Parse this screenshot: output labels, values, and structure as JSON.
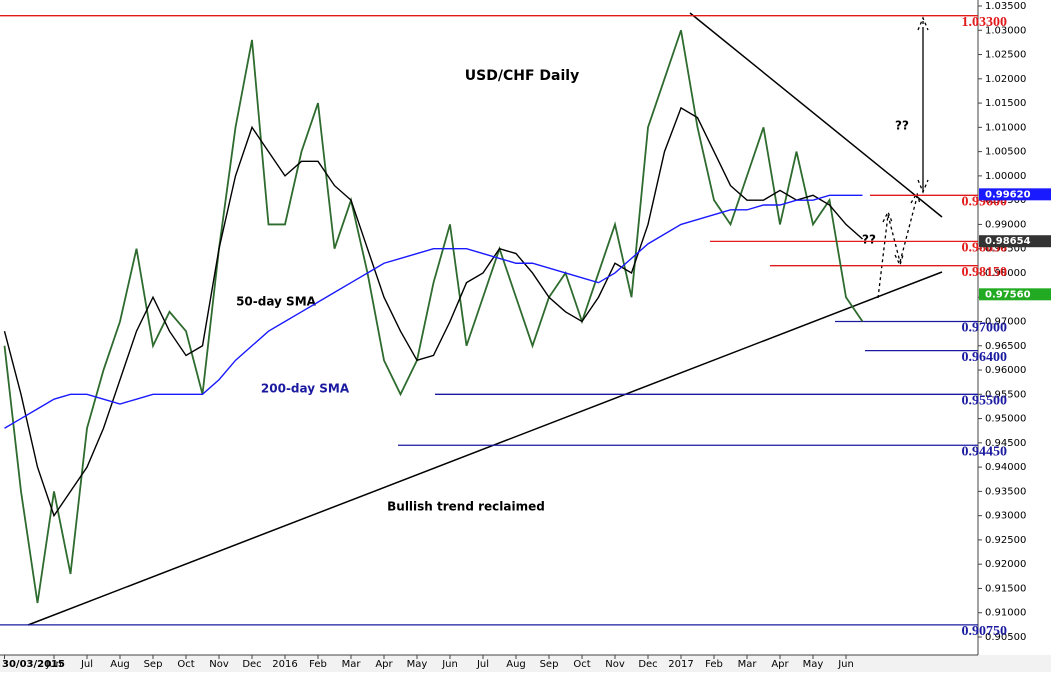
{
  "chart_data": {
    "type": "line",
    "title": "USD/CHF Daily",
    "categories": [
      "30/03/2015",
      null,
      null,
      "Jun",
      null,
      "Jul",
      null,
      "Aug",
      null,
      "Sep",
      null,
      "Oct",
      null,
      "Nov",
      null,
      "Dec",
      null,
      "2016",
      null,
      "Feb",
      null,
      "Mar",
      null,
      "Apr",
      null,
      "May",
      null,
      "Jun",
      null,
      "Jul",
      null,
      "Aug",
      null,
      "Sep",
      null,
      "Oct",
      null,
      "Nov",
      null,
      "Dec",
      null,
      "2017",
      null,
      "Feb",
      null,
      "Mar",
      null,
      "Apr",
      null,
      "May",
      null,
      "Jun",
      null
    ],
    "series": [
      {
        "name": "USD/CHF",
        "color": "#2e6b2e",
        "values": [
          0.965,
          0.935,
          0.912,
          0.935,
          0.918,
          0.948,
          0.96,
          0.97,
          0.985,
          0.965,
          0.972,
          0.968,
          0.955,
          0.985,
          1.01,
          1.028,
          0.99,
          0.99,
          1.005,
          1.015,
          0.985,
          0.995,
          0.98,
          0.962,
          0.955,
          0.962,
          0.978,
          0.99,
          0.965,
          0.975,
          0.985,
          0.975,
          0.965,
          0.975,
          0.98,
          0.97,
          0.98,
          0.99,
          0.975,
          1.01,
          1.02,
          1.03,
          1.01,
          0.995,
          0.99,
          1.0,
          1.01,
          0.99,
          1.005,
          0.99,
          0.995,
          0.975,
          0.97
        ]
      },
      {
        "name": "50-day SMA",
        "color": "#000000",
        "values": [
          0.968,
          0.955,
          0.94,
          0.93,
          0.935,
          0.94,
          0.948,
          0.958,
          0.968,
          0.975,
          0.968,
          0.963,
          0.965,
          0.985,
          1.0,
          1.01,
          1.005,
          1.0,
          1.003,
          1.003,
          0.998,
          0.995,
          0.985,
          0.975,
          0.968,
          0.962,
          0.963,
          0.97,
          0.978,
          0.98,
          0.985,
          0.984,
          0.98,
          0.975,
          0.972,
          0.97,
          0.975,
          0.982,
          0.98,
          0.99,
          1.005,
          1.014,
          1.012,
          1.005,
          0.998,
          0.995,
          0.995,
          0.997,
          0.995,
          0.996,
          0.994,
          0.99,
          0.987
        ]
      },
      {
        "name": "200-day SMA",
        "color": "#1a1aff",
        "values": [
          0.948,
          0.95,
          0.952,
          0.954,
          0.955,
          0.955,
          0.954,
          0.953,
          0.954,
          0.955,
          0.955,
          0.955,
          0.955,
          0.958,
          0.962,
          0.965,
          0.968,
          0.97,
          0.972,
          0.974,
          0.976,
          0.978,
          0.98,
          0.982,
          0.983,
          0.984,
          0.985,
          0.985,
          0.985,
          0.984,
          0.983,
          0.982,
          0.982,
          0.981,
          0.98,
          0.979,
          0.978,
          0.98,
          0.983,
          0.986,
          0.988,
          0.99,
          0.991,
          0.992,
          0.993,
          0.993,
          0.994,
          0.994,
          0.995,
          0.995,
          0.996,
          0.996,
          0.996
        ]
      }
    ],
    "ylim": [
      0.905,
      1.035
    ],
    "yticks": [
      {
        "value": 0.905,
        "label": "0.90500"
      },
      {
        "value": 0.91,
        "label": "0.91000"
      },
      {
        "value": 0.915,
        "label": "0.91500"
      },
      {
        "value": 0.92,
        "label": "0.92000"
      },
      {
        "value": 0.925,
        "label": "0.92500"
      },
      {
        "value": 0.93,
        "label": "0.93000"
      },
      {
        "value": 0.935,
        "label": "0.93500"
      },
      {
        "value": 0.94,
        "label": "0.94000"
      },
      {
        "value": 0.945,
        "label": "0.94500"
      },
      {
        "value": 0.95,
        "label": "0.95000"
      },
      {
        "value": 0.955,
        "label": "0.95500"
      },
      {
        "value": 0.96,
        "label": "0.96000"
      },
      {
        "value": 0.965,
        "label": "0.96500"
      },
      {
        "value": 0.97,
        "label": "0.97000"
      },
      {
        "value": 0.975,
        "label": "0.97500"
      },
      {
        "value": 0.98,
        "label": "0.98000"
      },
      {
        "value": 0.985,
        "label": "0.98500"
      },
      {
        "value": 0.99,
        "label": "0.99000"
      },
      {
        "value": 0.995,
        "label": "0.99500"
      },
      {
        "value": 1.0,
        "label": "1.00000"
      },
      {
        "value": 1.005,
        "label": "1.00500"
      },
      {
        "value": 1.01,
        "label": "1.01000"
      },
      {
        "value": 1.015,
        "label": "1.01500"
      },
      {
        "value": 1.02,
        "label": "1.02000"
      },
      {
        "value": 1.025,
        "label": "1.02500"
      },
      {
        "value": 1.03,
        "label": "1.03000"
      },
      {
        "value": 1.035,
        "label": "1.03500"
      }
    ],
    "levels": [
      {
        "value": 1.033,
        "label": "1.03300",
        "color": "#e31a1a"
      },
      {
        "value": 0.996,
        "label": "0.99600",
        "color": "#e31a1a"
      },
      {
        "value": 0.9865,
        "label": "0.98650",
        "color": "#e31a1a"
      },
      {
        "value": 0.9815,
        "label": "0.98150",
        "color": "#e31a1a"
      },
      {
        "value": 0.97,
        "label": "0.97000",
        "color": "#1a1aa0"
      },
      {
        "value": 0.964,
        "label": "0.96400",
        "color": "#1a1aa0"
      },
      {
        "value": 0.955,
        "label": "0.95500",
        "color": "#1a1aa0"
      },
      {
        "value": 0.9445,
        "label": "0.94450",
        "color": "#1a1aa0"
      },
      {
        "value": 0.9075,
        "label": "0.90750",
        "color": "#1a1aa0"
      }
    ],
    "price_badges": [
      {
        "value": 0.9962,
        "label": "0.99620",
        "color": "#1a1aff"
      },
      {
        "value": 0.98654,
        "label": "0.98654",
        "color": "#333333"
      },
      {
        "value": 0.9756,
        "label": "0.97560",
        "color": "#22aa22"
      }
    ],
    "annotations": [
      "50-day SMA",
      "200-day SMA",
      "Bullish trend reclaimed",
      "??",
      "??",
      "??"
    ]
  }
}
